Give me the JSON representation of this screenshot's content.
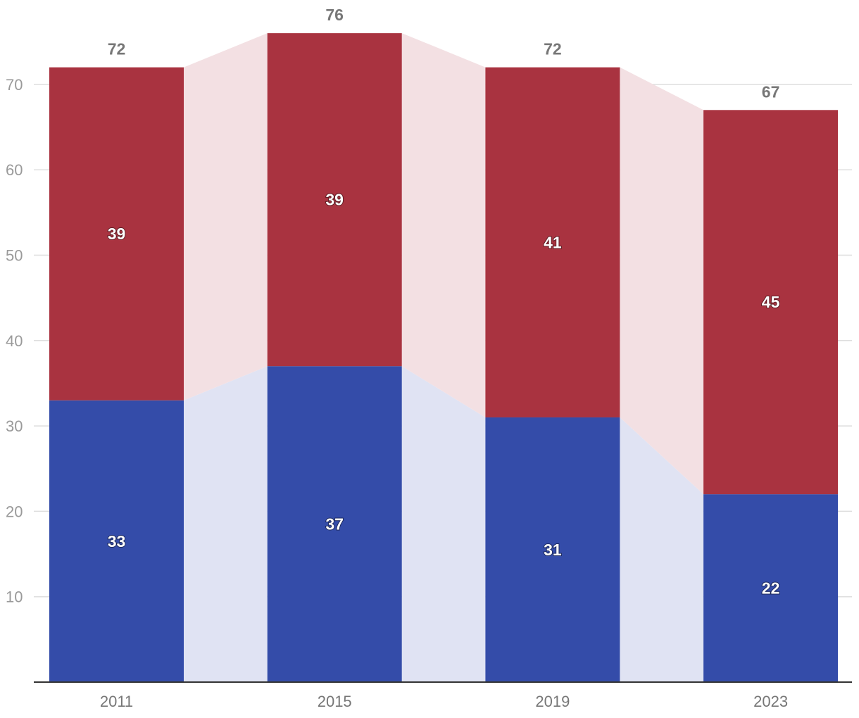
{
  "chart_data": {
    "type": "bar",
    "stacked": true,
    "categories": [
      "2011",
      "2015",
      "2019",
      "2023"
    ],
    "series": [
      {
        "values": [
          33,
          37,
          31,
          22
        ],
        "color": "#344ca9",
        "band_color": "#e0e3f3"
      },
      {
        "values": [
          39,
          39,
          41,
          45
        ],
        "color": "#a93340",
        "band_color": "#f3e0e3"
      }
    ],
    "totals": [
      72,
      76,
      72,
      67
    ],
    "ylim": [
      0,
      76
    ],
    "yticks": [
      10,
      20,
      30,
      40,
      50,
      60,
      70
    ],
    "grid": true,
    "legend": "none",
    "title": "",
    "xlabel": "",
    "ylabel": ""
  }
}
